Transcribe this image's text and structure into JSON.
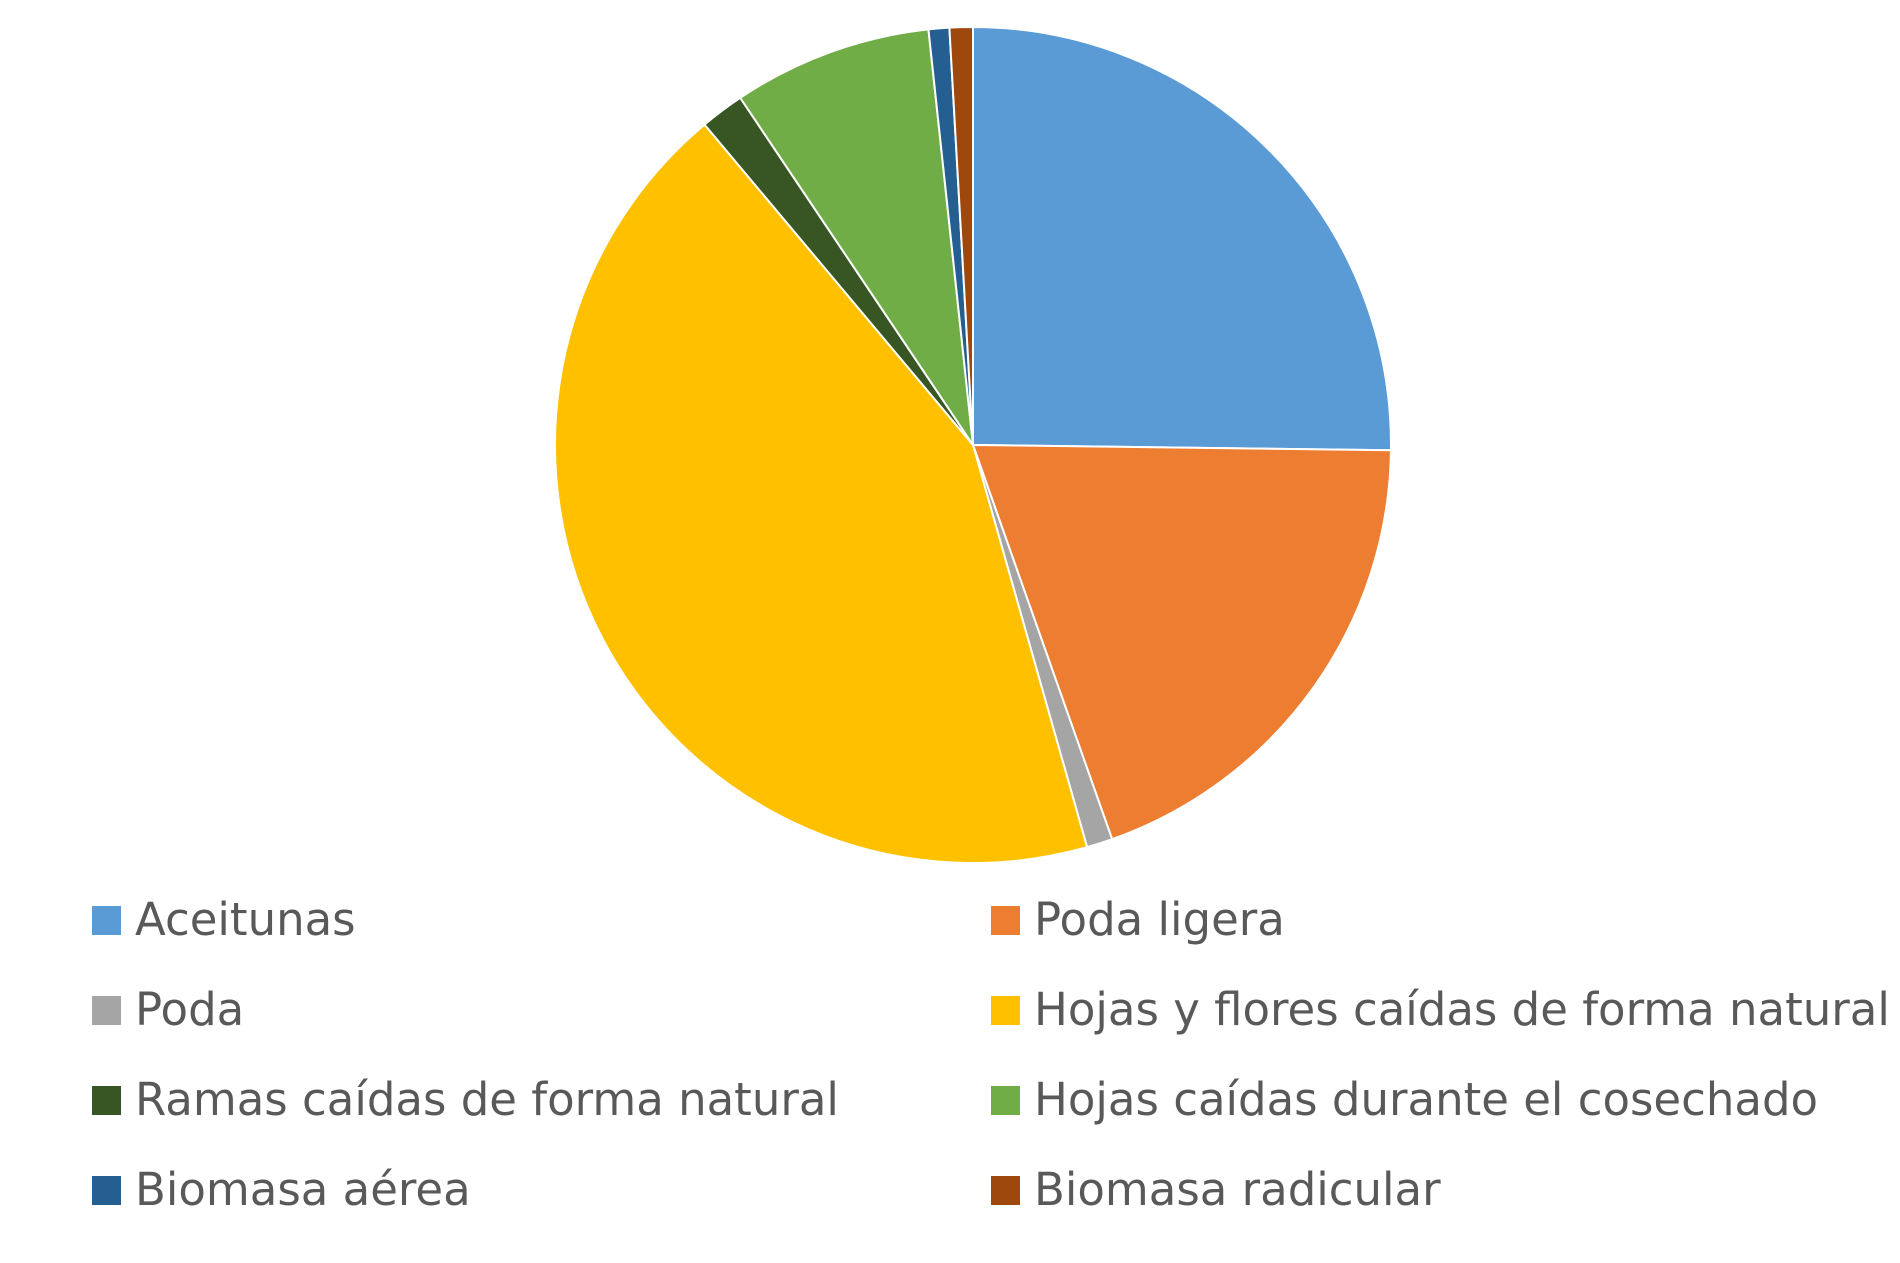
{
  "chart_data": {
    "type": "pie",
    "title": "",
    "start_angle_deg": 0,
    "direction": "clockwise",
    "slices": [
      {
        "name": "Aceitunas",
        "value": 25.2,
        "color": "#5B9BD5"
      },
      {
        "name": "Poda ligera",
        "value": 19.4,
        "color": "#ED7D31"
      },
      {
        "name": "Poda",
        "value": 1.0,
        "color": "#A5A5A5"
      },
      {
        "name": "Hojas y flores caídas de forma natural",
        "value": 43.3,
        "color": "#FFC000"
      },
      {
        "name": "Ramas caídas de forma natural",
        "value": 1.7,
        "color": "#375623"
      },
      {
        "name": "Hojas caídas durante el cosechado",
        "value": 7.7,
        "color": "#70AD47"
      },
      {
        "name": "Biomasa aérea",
        "value": 0.8,
        "color": "#255E91"
      },
      {
        "name": "Biomasa radicular",
        "value": 0.9,
        "color": "#9E480E"
      }
    ],
    "legend_placement": "bottom",
    "legend_columns": 2
  }
}
